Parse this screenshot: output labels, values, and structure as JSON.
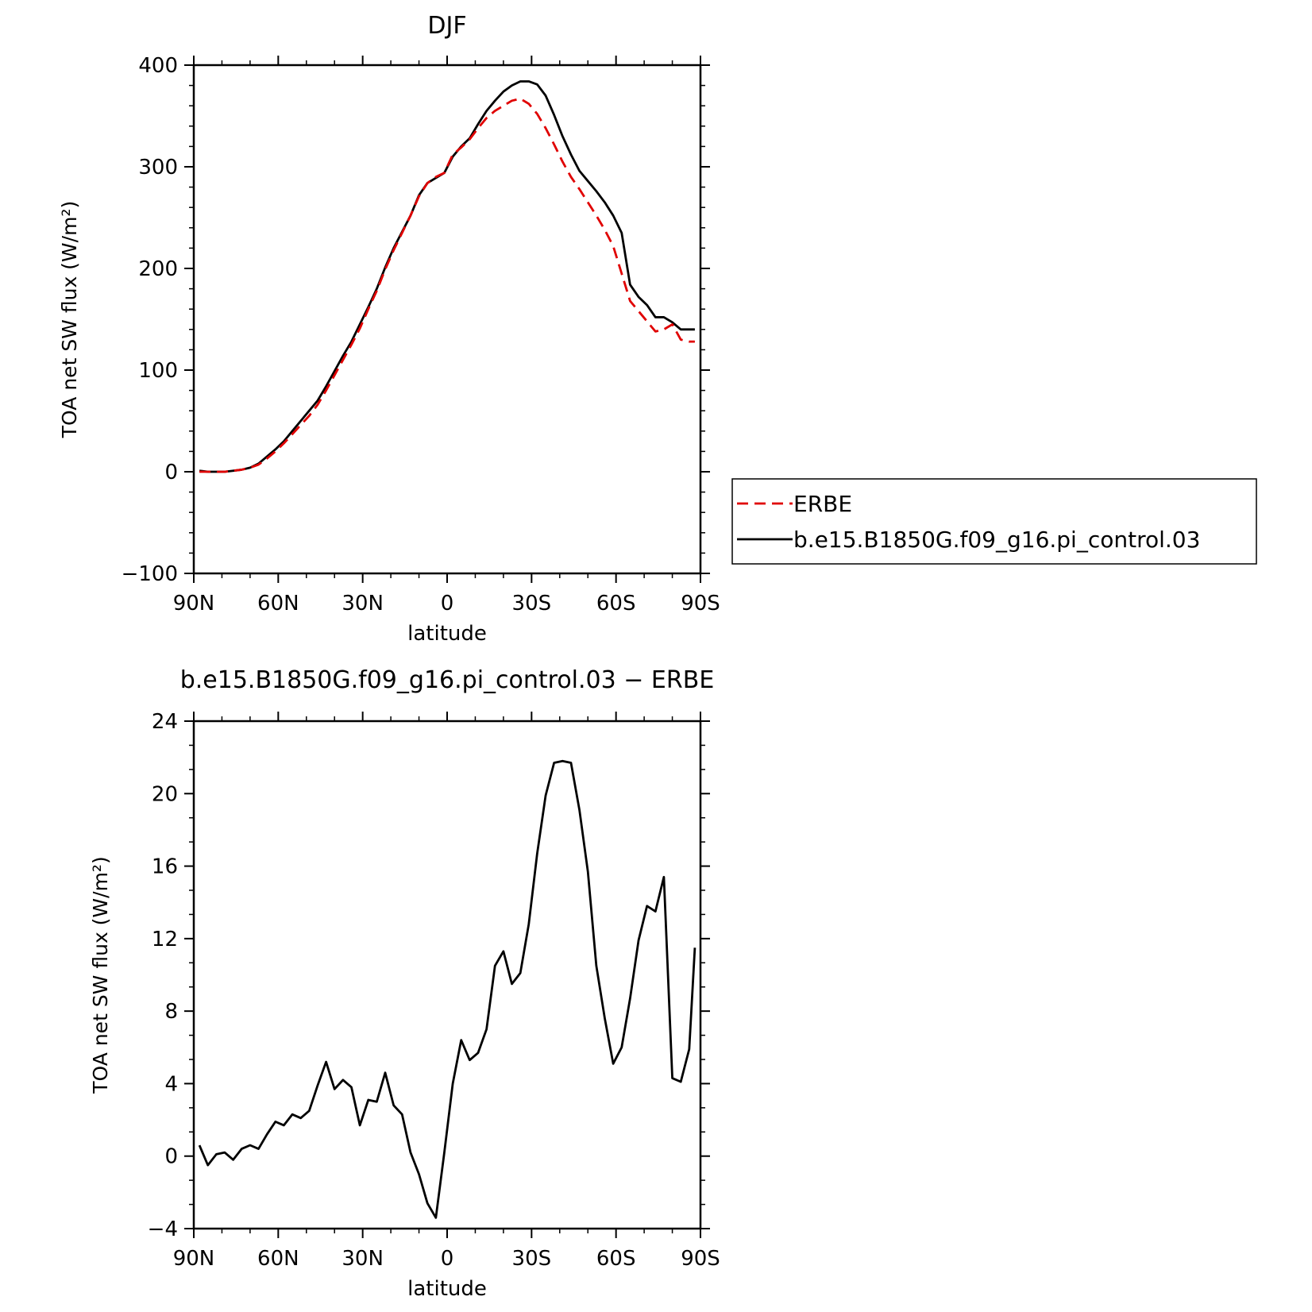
{
  "chart_data": [
    {
      "type": "line",
      "title": "DJF",
      "xlabel": "latitude",
      "ylabel": "TOA net SW flux (W/m²)",
      "xlim": [
        -90,
        90
      ],
      "ylim": [
        -100,
        400
      ],
      "x_ticks": [
        -90,
        -60,
        -30,
        0,
        30,
        60,
        90
      ],
      "x_tick_labels": [
        "90N",
        "60N",
        "30N",
        "0",
        "30S",
        "60S",
        "90S"
      ],
      "y_ticks": [
        -100,
        0,
        100,
        200,
        300,
        400
      ],
      "y_tick_labels": [
        "−100",
        "0",
        "100",
        "200",
        "300",
        "400"
      ],
      "legend": {
        "position": "right",
        "entries": [
          "ERBE",
          "b.e15.B1850G.f09_g16.pi_control.03"
        ]
      },
      "x": [
        -88,
        -85,
        -82,
        -79,
        -76,
        -73,
        -70,
        -67,
        -64,
        -61,
        -58,
        -55,
        -52,
        -49,
        -46,
        -43,
        -40,
        -37,
        -34,
        -31,
        -28,
        -25,
        -22,
        -19,
        -16,
        -13,
        -10,
        -7,
        -4,
        -1,
        2,
        5,
        8,
        11,
        14,
        17,
        20,
        23,
        26,
        29,
        32,
        35,
        38,
        41,
        44,
        47,
        50,
        53,
        56,
        59,
        62,
        65,
        68,
        71,
        74,
        77,
        80,
        83,
        86,
        88
      ],
      "series": [
        {
          "name": "ERBE",
          "color": "#e00000",
          "dash": "dashed",
          "values": [
            0,
            0,
            0,
            0,
            1,
            2,
            4,
            7,
            13,
            20,
            28,
            37,
            46,
            55,
            66,
            80,
            95,
            110,
            125,
            141,
            160,
            178,
            199,
            218,
            235,
            252,
            271,
            284,
            290,
            294,
            312,
            319,
            327,
            338,
            348,
            355,
            360,
            365,
            367,
            362,
            352,
            338,
            322,
            305,
            290,
            278,
            265,
            252,
            238,
            222,
            195,
            168,
            158,
            148,
            138,
            140,
            145,
            130,
            128,
            128
          ]
        },
        {
          "name": "b.e15.B1850G.f09_g16.pi_control.03",
          "color": "#000000",
          "dash": "solid",
          "values": [
            1,
            0,
            0,
            0,
            1,
            2,
            4,
            8,
            15,
            22,
            30,
            40,
            50,
            60,
            70,
            84,
            99,
            114,
            128,
            145,
            162,
            180,
            201,
            220,
            236,
            252,
            272,
            284,
            289,
            294,
            310,
            320,
            328,
            342,
            355,
            365,
            374,
            380,
            384,
            384,
            381,
            370,
            351,
            330,
            312,
            296,
            286,
            276,
            265,
            252,
            235,
            184,
            172,
            164,
            152,
            152,
            147,
            140,
            140,
            140
          ]
        }
      ]
    },
    {
      "type": "line",
      "title": "b.e15.B1850G.f09_g16.pi_control.03 − ERBE",
      "xlabel": "latitude",
      "ylabel": "TOA net SW flux (W/m²)",
      "xlim": [
        -90,
        90
      ],
      "ylim": [
        -4,
        24
      ],
      "x_ticks": [
        -90,
        -60,
        -30,
        0,
        30,
        60,
        90
      ],
      "x_tick_labels": [
        "90N",
        "60N",
        "30N",
        "0",
        "30S",
        "60S",
        "90S"
      ],
      "y_ticks": [
        -4,
        0,
        4,
        8,
        12,
        16,
        20,
        24
      ],
      "y_tick_labels": [
        "−4",
        "0",
        "4",
        "8",
        "12",
        "16",
        "20",
        "24"
      ],
      "x": [
        -88,
        -85,
        -82,
        -79,
        -76,
        -73,
        -70,
        -67,
        -64,
        -61,
        -58,
        -55,
        -52,
        -49,
        -46,
        -43,
        -40,
        -37,
        -34,
        -31,
        -28,
        -25,
        -22,
        -19,
        -16,
        -13,
        -10,
        -7,
        -4,
        -1,
        2,
        5,
        8,
        11,
        14,
        17,
        20,
        23,
        26,
        29,
        32,
        35,
        38,
        41,
        44,
        47,
        50,
        53,
        56,
        59,
        62,
        65,
        68,
        71,
        74,
        77,
        80,
        83,
        86,
        88
      ],
      "series": [
        {
          "color": "#000000",
          "dash": "solid",
          "values": [
            0.6,
            -0.5,
            0.1,
            0.2,
            -0.2,
            0.4,
            0.6,
            0.4,
            1.2,
            1.9,
            1.7,
            2.3,
            2.1,
            2.5,
            3.9,
            5.2,
            3.7,
            4.2,
            3.8,
            1.7,
            3.1,
            3.0,
            4.6,
            2.8,
            2.3,
            0.2,
            -1.0,
            -2.6,
            -3.4,
            0.2,
            4.0,
            6.4,
            5.3,
            5.7,
            7.0,
            10.5,
            11.3,
            9.5,
            10.1,
            12.8,
            16.7,
            19.9,
            21.7,
            21.8,
            21.7,
            19.1,
            15.7,
            10.5,
            7.6,
            5.1,
            6.0,
            8.7,
            11.9,
            13.8,
            13.5,
            15.4,
            4.3,
            4.1,
            5.9,
            11.5
          ]
        }
      ]
    }
  ]
}
